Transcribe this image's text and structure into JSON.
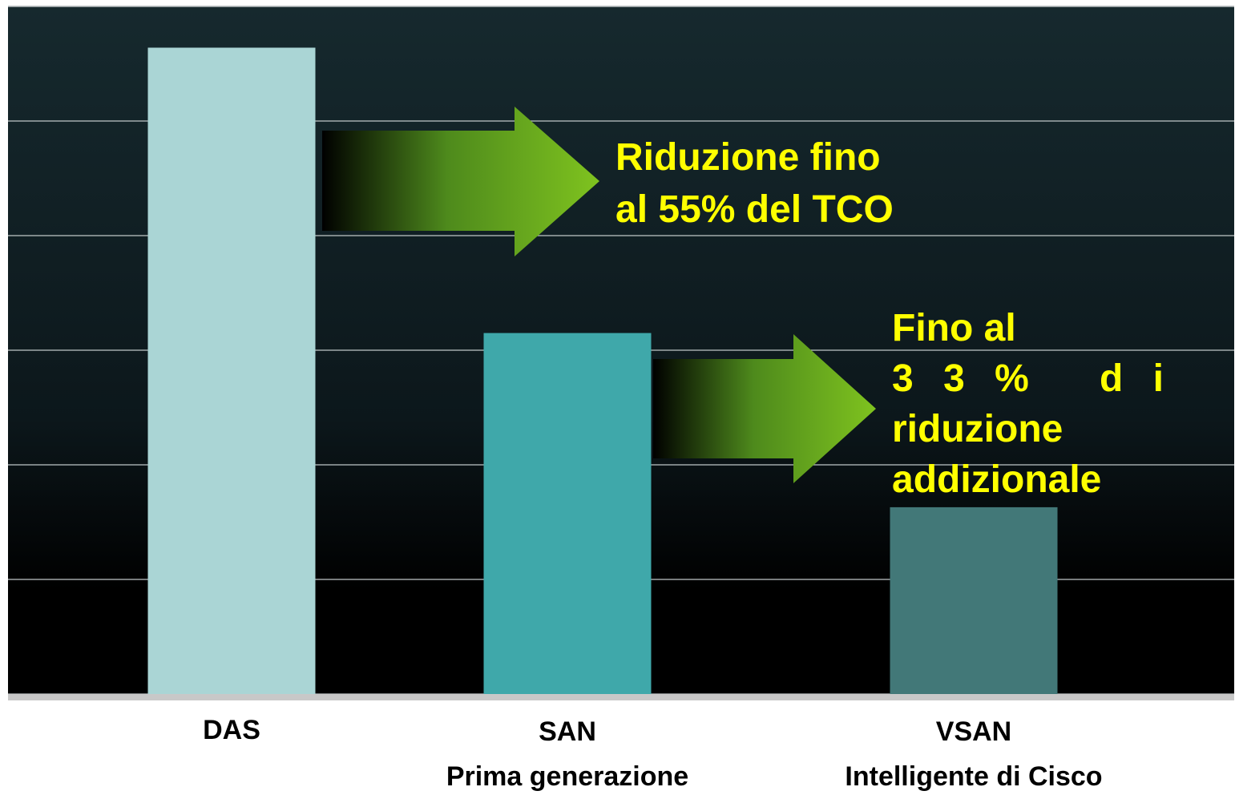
{
  "chart_data": {
    "type": "bar",
    "categories": [
      "DAS",
      "SAN",
      "VSAN"
    ],
    "category_sublabels": [
      null,
      "Prima generazione",
      "Intelligente di Cisco"
    ],
    "values": [
      5.64,
      3.15,
      1.63
    ],
    "colors": [
      "#aad5d5",
      "#3fa8aa",
      "#427878"
    ],
    "ylim": [
      0,
      6
    ],
    "yticks": [
      0,
      1,
      2,
      3,
      4,
      5,
      6
    ],
    "grid": true,
    "annotations": [
      {
        "lines": [
          "Riduzione fino",
          "al 55% del TCO"
        ]
      },
      {
        "lines": [
          "Fino al",
          "33% di",
          "riduzione",
          "addizionale"
        ]
      }
    ]
  }
}
